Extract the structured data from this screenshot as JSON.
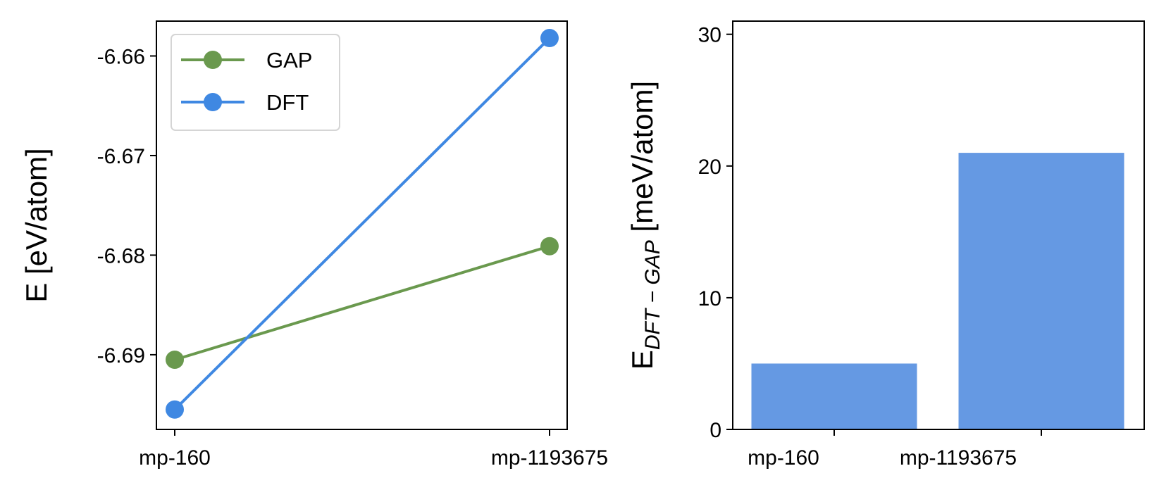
{
  "chart_data": [
    {
      "type": "line",
      "xlabel": "",
      "ylabel": "E [eV/atom]",
      "categories": [
        "mp-160",
        "mp-1193675"
      ],
      "ylim": [
        -6.6975,
        -6.6565
      ],
      "yticks": [
        -6.66,
        -6.67,
        -6.68,
        -6.69
      ],
      "ytick_labels": [
        "-6.66",
        "-6.67",
        "-6.68",
        "-6.69"
      ],
      "grid": false,
      "legend": {
        "placement": "top-left",
        "entries": [
          "GAP",
          "DFT"
        ]
      },
      "series": [
        {
          "name": "GAP",
          "color": "#6a994e",
          "values": [
            -6.6905,
            -6.6791
          ]
        },
        {
          "name": "DFT",
          "color": "#3f88e2",
          "values": [
            -6.6955,
            -6.6582
          ]
        }
      ]
    },
    {
      "type": "bar",
      "xlabel": "",
      "ylabel_main": "E",
      "ylabel_sub": "DFT − GAP",
      "ylabel_unit": " [meV/atom]",
      "categories": [
        "mp-160",
        "mp-1193675"
      ],
      "values": [
        5.0,
        21.0
      ],
      "color": "#6599e3",
      "ylim": [
        0,
        31
      ],
      "yticks": [
        0,
        10,
        20,
        30
      ],
      "ytick_labels": [
        "0",
        "10",
        "20",
        "30"
      ],
      "grid": false
    }
  ]
}
